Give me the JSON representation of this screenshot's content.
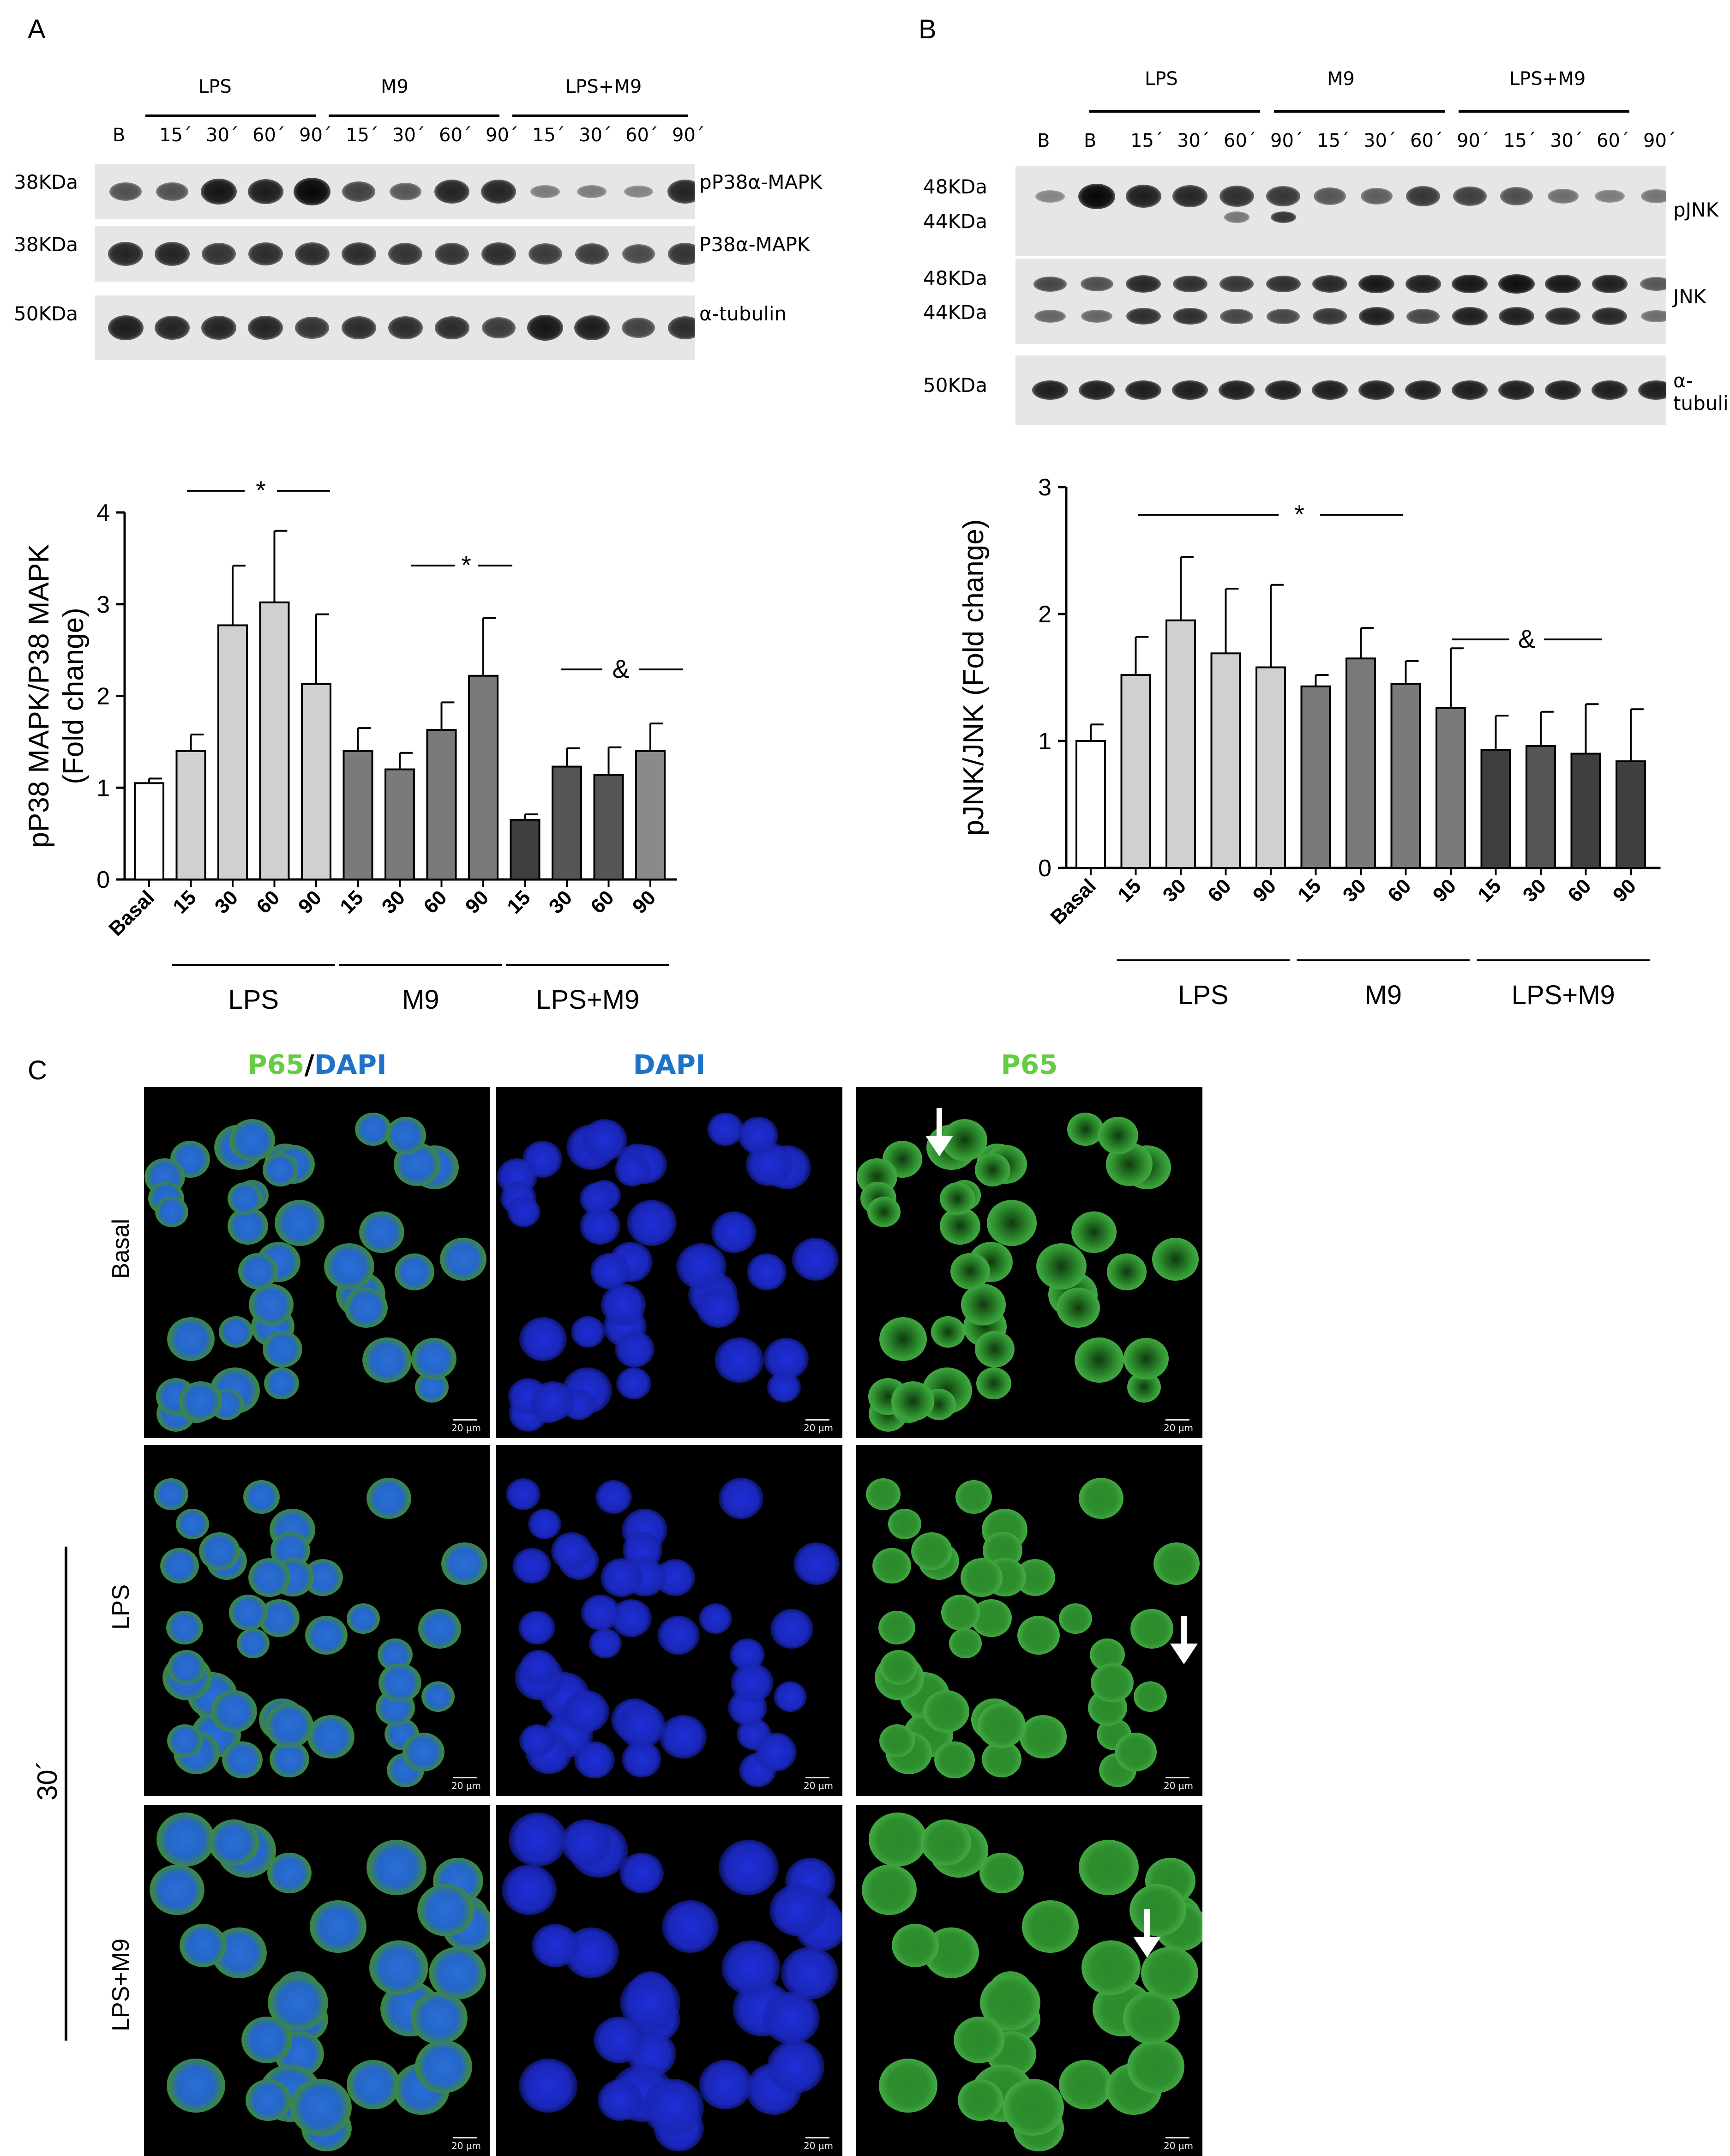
{
  "panelA": {
    "letter": "A",
    "groups": [
      "LPS",
      "M9",
      "LPS+M9"
    ],
    "lanes": [
      "B",
      "15´",
      "30´",
      "60´",
      "90´",
      "15´",
      "30´",
      "60´",
      "90´",
      "15´",
      "30´",
      "60´",
      "90´"
    ],
    "rows": [
      {
        "mw": "38KDa",
        "name": "pP38α-MAPK",
        "intensity": [
          0.5,
          0.5,
          0.9,
          0.85,
          1.0,
          0.6,
          0.45,
          0.8,
          0.8,
          0.2,
          0.2,
          0.15,
          0.8
        ]
      },
      {
        "mw": "38KDa",
        "name": "P38α-MAPK",
        "intensity": [
          0.8,
          0.8,
          0.7,
          0.75,
          0.75,
          0.75,
          0.7,
          0.7,
          0.75,
          0.65,
          0.65,
          0.55,
          0.7
        ]
      },
      {
        "mw": "50KDa",
        "name": "α-tubulin",
        "intensity": [
          0.85,
          0.8,
          0.8,
          0.8,
          0.7,
          0.75,
          0.75,
          0.75,
          0.65,
          0.9,
          0.85,
          0.6,
          0.75
        ]
      }
    ]
  },
  "panelB": {
    "letter": "B",
    "groups": [
      "LPS",
      "M9",
      "LPS+M9"
    ],
    "lanes": [
      "B",
      "B",
      "15´",
      "30´",
      "60´",
      "90´",
      "15´",
      "30´",
      "60´",
      "90´",
      "15´",
      "30´",
      "60´",
      "90´"
    ],
    "pjnk_mw": [
      "48KDa",
      "44KDa"
    ],
    "jnk_mw": [
      "48KDa",
      "44KDa"
    ],
    "tubulin_mw": "50KDa",
    "row_names": [
      "pJNK",
      "JNK",
      "α-tubulin"
    ]
  },
  "chart_data": [
    {
      "type": "bar",
      "panel": "A",
      "ylabel": "pP38 MAPK/P38 MAPK\n(Fold change)",
      "ylabel_line1": "pP38 MAPK/P38 MAPK",
      "ylabel_line2": "(Fold change)",
      "ylim": [
        0,
        4
      ],
      "yticks": [
        0,
        1,
        2,
        3,
        4
      ],
      "categories": [
        "Basal",
        "15",
        "30",
        "60",
        "90",
        "15",
        "30",
        "60",
        "90",
        "15",
        "30",
        "60",
        "90"
      ],
      "values": [
        1.05,
        1.4,
        2.77,
        3.02,
        2.13,
        1.4,
        1.2,
        1.63,
        2.22,
        0.65,
        1.23,
        1.14,
        1.4
      ],
      "errors": [
        0.05,
        0.18,
        0.65,
        0.78,
        0.76,
        0.25,
        0.18,
        0.3,
        0.63,
        0.06,
        0.2,
        0.3,
        0.3
      ],
      "colors": [
        "#ffffff",
        "#d0d0d0",
        "#d0d0d0",
        "#d0d0d0",
        "#d0d0d0",
        "#7a7a7a",
        "#7a7a7a",
        "#7a7a7a",
        "#7a7a7a",
        "#3f3f3f",
        "#555555",
        "#555555",
        "#8a8a8a"
      ],
      "group_labels": [
        "LPS",
        "M9",
        "LPS+M9"
      ],
      "annotations": [
        "*",
        "*",
        "&"
      ]
    },
    {
      "type": "bar",
      "panel": "B",
      "ylabel": "pJNK/JNK (Fold change)",
      "ylim": [
        0,
        3
      ],
      "yticks": [
        0,
        1,
        2,
        3
      ],
      "categories": [
        "Basal",
        "15",
        "30",
        "60",
        "90",
        "15",
        "30",
        "60",
        "90",
        "15",
        "30",
        "60",
        "90"
      ],
      "values": [
        1.0,
        1.52,
        1.95,
        1.69,
        1.58,
        1.43,
        1.65,
        1.45,
        1.26,
        0.93,
        0.96,
        0.9,
        0.84
      ],
      "errors": [
        0.13,
        0.3,
        0.5,
        0.51,
        0.65,
        0.09,
        0.24,
        0.18,
        0.47,
        0.27,
        0.27,
        0.39,
        0.41
      ],
      "colors": [
        "#ffffff",
        "#d0d0d0",
        "#d0d0d0",
        "#d0d0d0",
        "#d0d0d0",
        "#7a7a7a",
        "#7a7a7a",
        "#7a7a7a",
        "#7a7a7a",
        "#3f3f3f",
        "#555555",
        "#3f3f3f",
        "#3f3f3f"
      ],
      "group_labels": [
        "LPS",
        "M9",
        "LPS+M9"
      ],
      "annotations": [
        "*",
        "&"
      ]
    }
  ],
  "panelC": {
    "letter": "C",
    "col_heads": {
      "p65": "P65",
      "slash": "/",
      "dapi": "DAPI",
      "dapi2": "DAPI",
      "p65b": "P65"
    },
    "rows": [
      "Basal",
      "LPS",
      "LPS+M9"
    ],
    "time_label": "30´",
    "scalebar": "20 µm",
    "colors": {
      "p65": "#66cc44",
      "dapi": "#1e73c8"
    }
  }
}
